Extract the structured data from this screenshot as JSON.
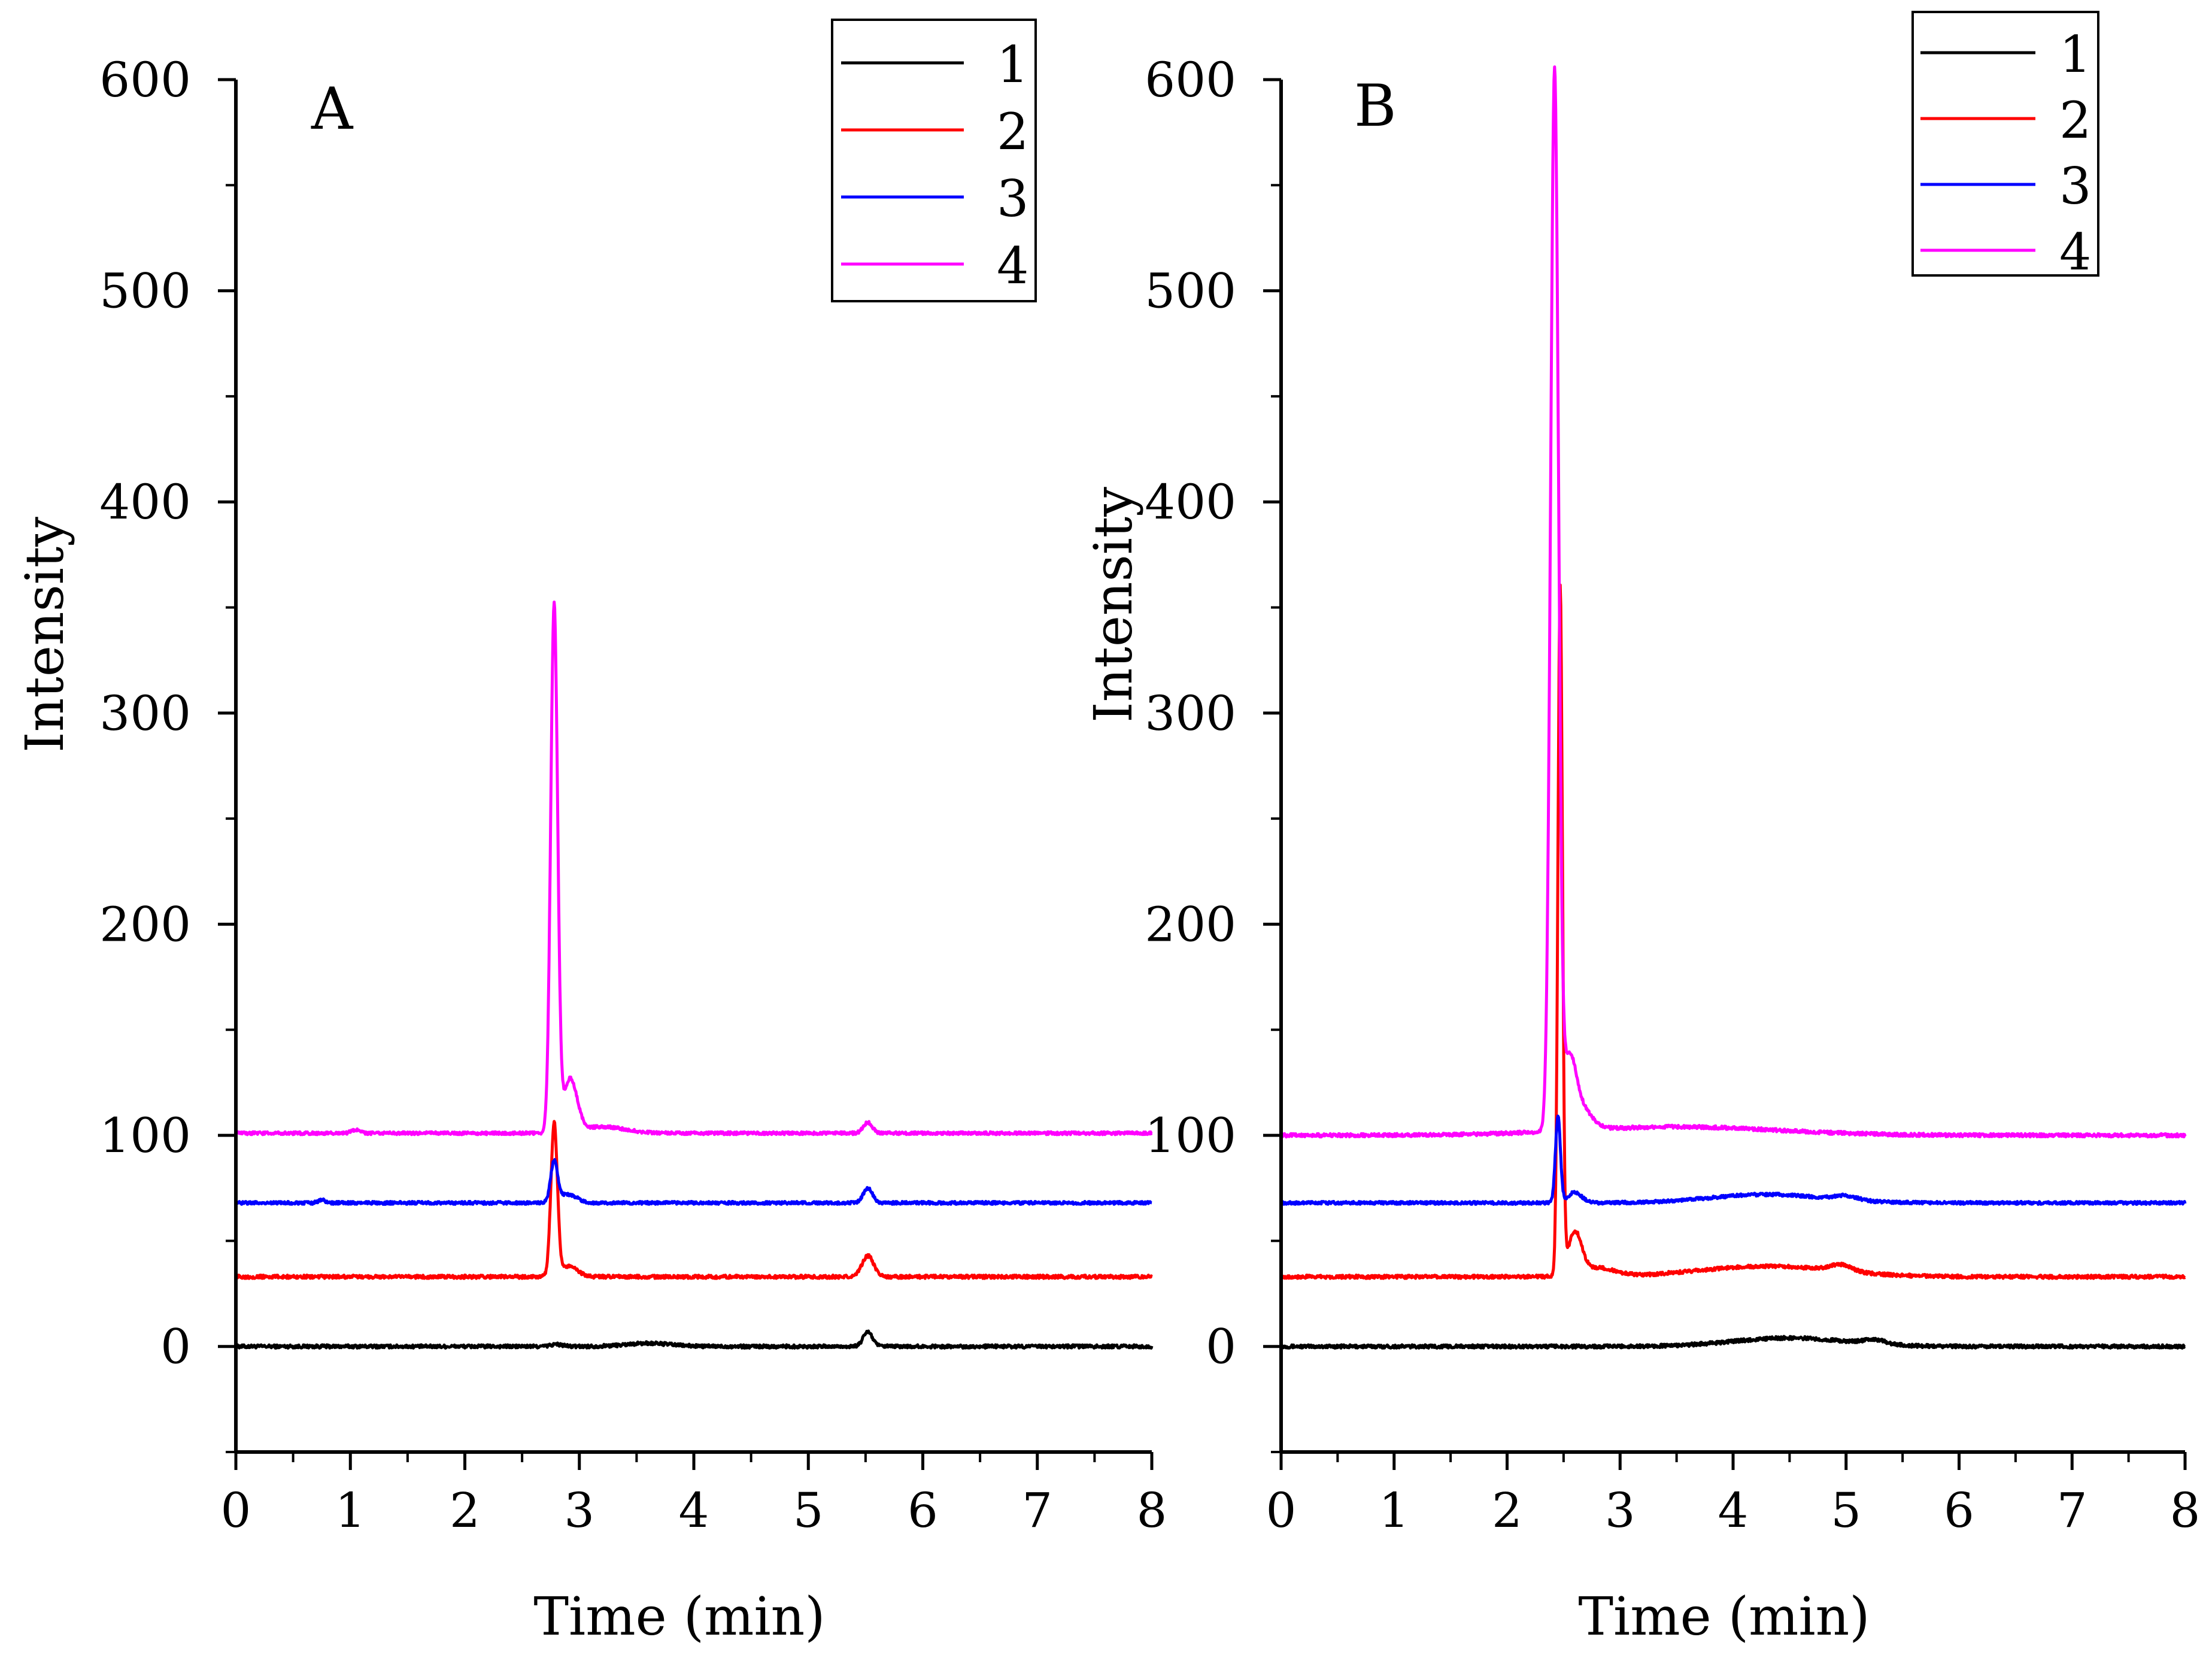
{
  "chart_data": [
    {
      "type": "line",
      "panel_label": "A",
      "xlabel": "Time (min)",
      "ylabel": "Intensity",
      "xlim": [
        0,
        8
      ],
      "ylim": [
        -50,
        600
      ],
      "xticks": [
        "0",
        "1",
        "2",
        "3",
        "4",
        "5",
        "6",
        "7",
        "8"
      ],
      "yticks": [
        "0",
        "100",
        "200",
        "300",
        "400",
        "500",
        "600"
      ],
      "legend": {
        "placement": "top-right",
        "entries": [
          "1",
          "2",
          "3",
          "4"
        ]
      },
      "series": [
        {
          "name": "1",
          "color": "#000000",
          "baseline": 0,
          "noise": 0.8,
          "peaks": [
            [
              2.8,
              1,
              0.05
            ],
            [
              3.6,
              1.5,
              0.2
            ],
            [
              5.52,
              7,
              0.04
            ]
          ]
        },
        {
          "name": "2",
          "color": "#ff0000",
          "baseline": 33,
          "noise": 0.8,
          "peaks": [
            [
              2.78,
              72,
              0.028
            ],
            [
              2.9,
              5,
              0.08
            ],
            [
              5.52,
              10,
              0.05
            ]
          ]
        },
        {
          "name": "3",
          "color": "#0000ff",
          "baseline": 68,
          "noise": 0.7,
          "peaks": [
            [
              0.75,
              1.5,
              0.03
            ],
            [
              2.78,
              19,
              0.03
            ],
            [
              2.9,
              4,
              0.08
            ],
            [
              5.52,
              7,
              0.04
            ]
          ]
        },
        {
          "name": "4",
          "color": "#ff00ff",
          "baseline": 101,
          "noise": 0.7,
          "peaks": [
            [
              1.05,
              1.5,
              0.04
            ],
            [
              2.78,
              249,
              0.03
            ],
            [
              2.92,
              25,
              0.06
            ],
            [
              3.2,
              3,
              0.2
            ],
            [
              5.52,
              5,
              0.04
            ]
          ]
        }
      ]
    },
    {
      "type": "line",
      "panel_label": "B",
      "xlabel": "Time (min)",
      "ylabel": "Intensity",
      "xlim": [
        0,
        8
      ],
      "ylim": [
        -50,
        600
      ],
      "xticks": [
        "0",
        "1",
        "2",
        "3",
        "4",
        "5",
        "6",
        "7",
        "8"
      ],
      "yticks": [
        "0",
        "100",
        "200",
        "300",
        "400",
        "500",
        "600"
      ],
      "legend": {
        "placement": "top-right",
        "entries": [
          "1",
          "2",
          "3",
          "4"
        ]
      },
      "series": [
        {
          "name": "1",
          "color": "#000000",
          "baseline": 0,
          "noise": 0.8,
          "peaks": [
            [
              4.5,
              4,
              0.5
            ],
            [
              5.25,
              2,
              0.1
            ]
          ]
        },
        {
          "name": "2",
          "color": "#ff0000",
          "baseline": 33,
          "noise": 0.8,
          "peaks": [
            [
              2.47,
              325,
              0.02
            ],
            [
              2.6,
              20,
              0.06
            ],
            [
              2.8,
              4,
              0.15
            ],
            [
              4.3,
              5,
              0.6
            ],
            [
              4.95,
              3,
              0.1
            ]
          ]
        },
        {
          "name": "3",
          "color": "#0000ff",
          "baseline": 68,
          "noise": 0.7,
          "peaks": [
            [
              2.45,
              41,
              0.022
            ],
            [
              2.6,
              5,
              0.06
            ],
            [
              4.3,
              4,
              0.5
            ],
            [
              5.0,
              2,
              0.1
            ]
          ]
        },
        {
          "name": "4",
          "color": "#ff00ff",
          "baseline": 100,
          "noise": 0.8,
          "peaks": [
            [
              2.42,
              500,
              0.035
            ],
            [
              2.55,
              30,
              0.06
            ],
            [
              2.65,
              10,
              0.1
            ],
            [
              3.5,
              4,
              0.9
            ]
          ]
        }
      ]
    }
  ]
}
